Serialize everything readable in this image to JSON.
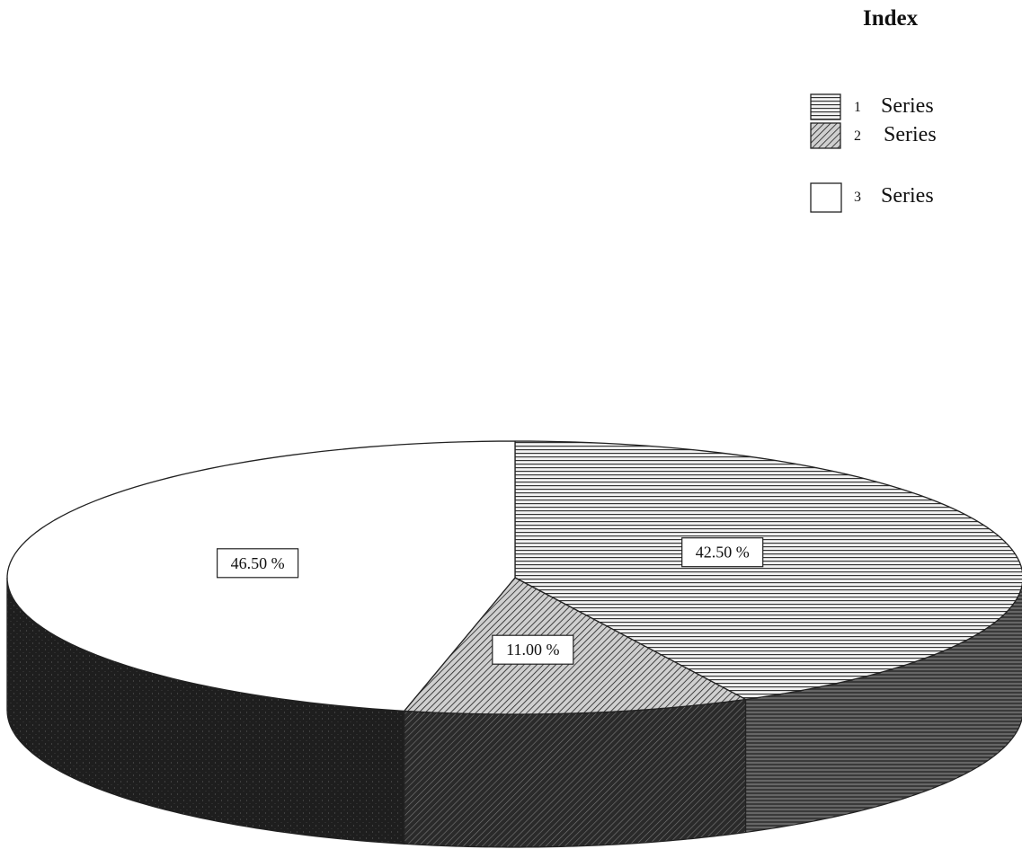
{
  "chart_data": {
    "type": "pie",
    "legend": {
      "title": "Index",
      "placement": "top-right"
    },
    "categories": [
      {
        "index": "1",
        "label": "Series"
      },
      {
        "index": "2",
        "label": "Series"
      },
      {
        "index": "3",
        "label": "Series"
      }
    ],
    "values": [
      42.5,
      11.0,
      46.5
    ],
    "data_labels": [
      "42.50 %",
      "11.00 %",
      "46.50 %"
    ],
    "fills": [
      "horizontal-hatch",
      "diagonal-hatch",
      "white"
    ],
    "three_d": true,
    "colors": {
      "outline": "#222222",
      "side": "#1e1e1e",
      "side_speckle": "#bdbdbd",
      "background": "#ffffff"
    }
  }
}
